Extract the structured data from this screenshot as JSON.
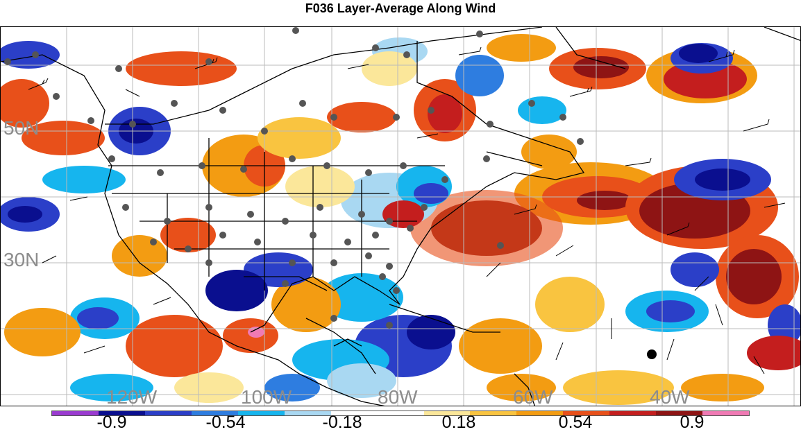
{
  "title": "F036 Layer-Average Along Wind",
  "latitude_labels": [
    "50N",
    "30N"
  ],
  "longitude_labels": [
    "120W",
    "100W",
    "80W",
    "60W",
    "40W"
  ],
  "colorbar": {
    "colors": [
      "#9a3bd0",
      "#0a0f8f",
      "#2b3fc8",
      "#2e7de0",
      "#16b5ee",
      "#a9d8f2",
      "#ffffff",
      "#ffffff",
      "#fbe79a",
      "#f9c440",
      "#f39c12",
      "#e8501a",
      "#c41e1e",
      "#8e1414",
      "#f07ab4"
    ],
    "tick_labels": [
      "-0.9",
      "-0.54",
      "-0.18",
      "0.18",
      "0.54",
      "0.9"
    ]
  },
  "contour_levels": [
    -0.9,
    -0.54,
    -0.18,
    0.18,
    0.54,
    0.9
  ]
}
